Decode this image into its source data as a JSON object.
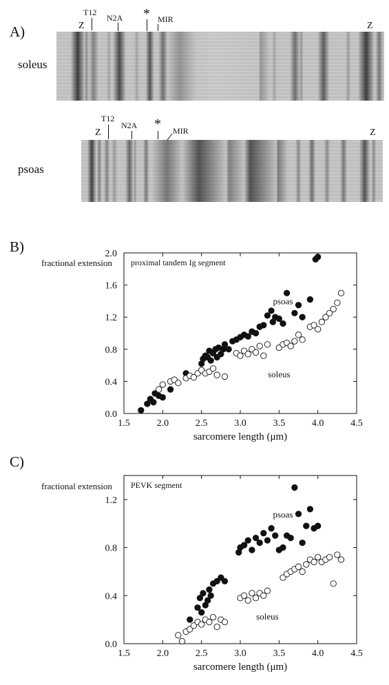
{
  "panel_a": {
    "letter": "A)",
    "gels": [
      {
        "muscle": "soleus",
        "labels": {
          "z_left": "Z",
          "t12": "T12",
          "n2a": "N2A",
          "asterisk": "*",
          "mir": "MIR",
          "z_right": "Z"
        },
        "bands": [
          {
            "x": 0.065,
            "w": 0.022,
            "i": 0.92
          },
          {
            "x": 0.09,
            "w": 0.01,
            "i": 0.5
          },
          {
            "x": 0.113,
            "w": 0.016,
            "i": 0.55
          },
          {
            "x": 0.16,
            "w": 0.008,
            "i": 0.35
          },
          {
            "x": 0.192,
            "w": 0.02,
            "i": 0.85
          },
          {
            "x": 0.245,
            "w": 0.008,
            "i": 0.35
          },
          {
            "x": 0.285,
            "w": 0.013,
            "i": 0.8
          },
          {
            "x": 0.325,
            "w": 0.014,
            "i": 0.65
          },
          {
            "x": 0.375,
            "w": 0.05,
            "i": 0.45
          },
          {
            "x": 0.48,
            "w": 0.14,
            "i": 0.15
          },
          {
            "x": 0.6,
            "w": 0.05,
            "i": 0.45
          },
          {
            "x": 0.665,
            "w": 0.008,
            "i": 0.35
          },
          {
            "x": 0.728,
            "w": 0.016,
            "i": 0.65
          },
          {
            "x": 0.745,
            "w": 0.008,
            "i": 0.5
          },
          {
            "x": 0.815,
            "w": 0.018,
            "i": 0.75
          },
          {
            "x": 0.89,
            "w": 0.008,
            "i": 0.4
          },
          {
            "x": 0.945,
            "w": 0.025,
            "i": 0.92
          },
          {
            "x": 0.985,
            "w": 0.012,
            "i": 0.6
          }
        ]
      },
      {
        "muscle": "psoas",
        "labels": {
          "z_left": "Z",
          "t12": "T12",
          "n2a": "N2A",
          "asterisk": "*",
          "mir": "MIR",
          "z_right": "Z"
        },
        "bands": [
          {
            "x": 0.035,
            "w": 0.015,
            "i": 0.9
          },
          {
            "x": 0.06,
            "w": 0.008,
            "i": 0.55
          },
          {
            "x": 0.085,
            "w": 0.01,
            "i": 0.55
          },
          {
            "x": 0.11,
            "w": 0.01,
            "i": 0.4
          },
          {
            "x": 0.16,
            "w": 0.014,
            "i": 0.7
          },
          {
            "x": 0.178,
            "w": 0.006,
            "i": 0.45
          },
          {
            "x": 0.215,
            "w": 0.01,
            "i": 0.6
          },
          {
            "x": 0.285,
            "w": 0.05,
            "i": 0.6
          },
          {
            "x": 0.39,
            "w": 0.09,
            "i": 0.8
          },
          {
            "x": 0.49,
            "w": 0.05,
            "i": 0.55
          },
          {
            "x": 0.56,
            "w": 0.09,
            "i": 0.8
          },
          {
            "x": 0.645,
            "w": 0.04,
            "i": 0.6
          },
          {
            "x": 0.72,
            "w": 0.01,
            "i": 0.5
          },
          {
            "x": 0.765,
            "w": 0.012,
            "i": 0.65
          },
          {
            "x": 0.815,
            "w": 0.01,
            "i": 0.5
          },
          {
            "x": 0.87,
            "w": 0.012,
            "i": 0.6
          },
          {
            "x": 0.94,
            "w": 0.018,
            "i": 0.8
          },
          {
            "x": 0.97,
            "w": 0.008,
            "i": 0.5
          }
        ]
      }
    ]
  },
  "chart_data": [
    {
      "type": "scatter",
      "panel_letter": "B)",
      "title": "proximal tandem Ig segment",
      "xlabel": "sarcomere length (μm)",
      "ylabel": "fractional extension",
      "xlim": [
        1.5,
        4.5
      ],
      "ylim": [
        0,
        2.0
      ],
      "xticks": [
        "1.5",
        "2.0",
        "2.5",
        "3.0",
        "3.5",
        "4.0",
        "4.5"
      ],
      "yticks": [
        "0.0",
        "0.4",
        "0.8",
        "1.2",
        "1.6",
        "2.0"
      ],
      "annotations": [
        "psoas",
        "soleus"
      ],
      "series": [
        {
          "name": "psoas",
          "marker": "filled-circle",
          "points": [
            [
              1.72,
              0.04
            ],
            [
              1.8,
              0.12
            ],
            [
              1.84,
              0.18
            ],
            [
              1.88,
              0.14
            ],
            [
              1.9,
              0.25
            ],
            [
              1.95,
              0.22
            ],
            [
              2.0,
              0.2
            ],
            [
              2.1,
              0.3
            ],
            [
              2.3,
              0.5
            ],
            [
              2.5,
              0.62
            ],
            [
              2.52,
              0.68
            ],
            [
              2.55,
              0.72
            ],
            [
              2.58,
              0.7
            ],
            [
              2.6,
              0.78
            ],
            [
              2.62,
              0.66
            ],
            [
              2.65,
              0.75
            ],
            [
              2.68,
              0.8
            ],
            [
              2.7,
              0.7
            ],
            [
              2.72,
              0.82
            ],
            [
              2.75,
              0.74
            ],
            [
              2.78,
              0.8
            ],
            [
              2.8,
              0.86
            ],
            [
              2.85,
              0.8
            ],
            [
              2.9,
              0.9
            ],
            [
              2.95,
              0.92
            ],
            [
              3.0,
              0.95
            ],
            [
              3.05,
              0.98
            ],
            [
              3.1,
              0.96
            ],
            [
              3.15,
              1.02
            ],
            [
              3.2,
              1.0
            ],
            [
              3.25,
              1.08
            ],
            [
              3.3,
              1.1
            ],
            [
              3.35,
              1.22
            ],
            [
              3.4,
              1.28
            ],
            [
              3.42,
              1.14
            ],
            [
              3.45,
              1.2
            ],
            [
              3.5,
              1.18
            ],
            [
              3.55,
              1.12
            ],
            [
              3.6,
              1.5
            ],
            [
              3.7,
              1.25
            ],
            [
              3.75,
              1.35
            ],
            [
              3.8,
              1.2
            ],
            [
              3.9,
              1.42
            ],
            [
              3.97,
              1.92
            ],
            [
              4.0,
              1.95
            ]
          ]
        },
        {
          "name": "soleus",
          "marker": "open-circle",
          "points": [
            [
              1.95,
              0.3
            ],
            [
              2.0,
              0.36
            ],
            [
              2.1,
              0.4
            ],
            [
              2.15,
              0.42
            ],
            [
              2.2,
              0.38
            ],
            [
              2.3,
              0.44
            ],
            [
              2.35,
              0.47
            ],
            [
              2.4,
              0.45
            ],
            [
              2.45,
              0.5
            ],
            [
              2.5,
              0.54
            ],
            [
              2.55,
              0.5
            ],
            [
              2.6,
              0.52
            ],
            [
              2.65,
              0.56
            ],
            [
              2.7,
              0.48
            ],
            [
              2.8,
              0.46
            ],
            [
              2.95,
              0.75
            ],
            [
              3.0,
              0.72
            ],
            [
              3.05,
              0.78
            ],
            [
              3.1,
              0.74
            ],
            [
              3.15,
              0.8
            ],
            [
              3.2,
              0.76
            ],
            [
              3.25,
              0.84
            ],
            [
              3.3,
              0.72
            ],
            [
              3.35,
              0.86
            ],
            [
              3.5,
              0.82
            ],
            [
              3.55,
              0.86
            ],
            [
              3.6,
              0.88
            ],
            [
              3.65,
              0.84
            ],
            [
              3.7,
              0.9
            ],
            [
              3.75,
              0.98
            ],
            [
              3.8,
              0.92
            ],
            [
              3.9,
              1.08
            ],
            [
              3.95,
              1.1
            ],
            [
              4.0,
              1.05
            ],
            [
              4.05,
              1.14
            ],
            [
              4.1,
              1.2
            ],
            [
              4.15,
              1.25
            ],
            [
              4.2,
              1.3
            ],
            [
              4.25,
              1.38
            ],
            [
              4.3,
              1.5
            ]
          ]
        }
      ]
    },
    {
      "type": "scatter",
      "panel_letter": "C)",
      "title": "PEVK segment",
      "xlabel": "sarcomere length (μm)",
      "ylabel": "fractional extension",
      "xlim": [
        1.5,
        4.5
      ],
      "ylim": [
        0,
        1.4
      ],
      "xticks": [
        "1.5",
        "2.0",
        "2.5",
        "3.0",
        "3.5",
        "4.0",
        "4.5"
      ],
      "yticks": [
        "0.0",
        "0.4",
        "0.8",
        "1.2"
      ],
      "annotations": [
        "psoas",
        "soleus"
      ],
      "series": [
        {
          "name": "psoas",
          "marker": "filled-circle",
          "points": [
            [
              2.35,
              0.2
            ],
            [
              2.45,
              0.3
            ],
            [
              2.48,
              0.38
            ],
            [
              2.5,
              0.26
            ],
            [
              2.52,
              0.42
            ],
            [
              2.55,
              0.32
            ],
            [
              2.58,
              0.36
            ],
            [
              2.6,
              0.45
            ],
            [
              2.62,
              0.4
            ],
            [
              2.65,
              0.5
            ],
            [
              2.7,
              0.52
            ],
            [
              2.75,
              0.55
            ],
            [
              2.8,
              0.52
            ],
            [
              2.98,
              0.76
            ],
            [
              3.0,
              0.8
            ],
            [
              3.05,
              0.82
            ],
            [
              3.1,
              0.86
            ],
            [
              3.15,
              0.78
            ],
            [
              3.2,
              0.88
            ],
            [
              3.25,
              0.84
            ],
            [
              3.3,
              0.92
            ],
            [
              3.35,
              0.86
            ],
            [
              3.4,
              0.96
            ],
            [
              3.45,
              0.9
            ],
            [
              3.5,
              0.78
            ],
            [
              3.55,
              0.8
            ],
            [
              3.6,
              0.9
            ],
            [
              3.65,
              0.88
            ],
            [
              3.7,
              1.3
            ],
            [
              3.75,
              1.08
            ],
            [
              3.8,
              0.84
            ],
            [
              3.85,
              0.98
            ],
            [
              3.9,
              1.12
            ],
            [
              3.95,
              0.96
            ],
            [
              4.0,
              0.98
            ]
          ]
        },
        {
          "name": "soleus",
          "marker": "open-circle",
          "points": [
            [
              2.2,
              0.07
            ],
            [
              2.25,
              0.02
            ],
            [
              2.3,
              0.1
            ],
            [
              2.35,
              0.12
            ],
            [
              2.4,
              0.15
            ],
            [
              2.45,
              0.18
            ],
            [
              2.5,
              0.16
            ],
            [
              2.55,
              0.2
            ],
            [
              2.6,
              0.18
            ],
            [
              2.65,
              0.22
            ],
            [
              2.7,
              0.14
            ],
            [
              2.75,
              0.2
            ],
            [
              2.8,
              0.18
            ],
            [
              3.0,
              0.38
            ],
            [
              3.05,
              0.4
            ],
            [
              3.1,
              0.36
            ],
            [
              3.15,
              0.42
            ],
            [
              3.2,
              0.38
            ],
            [
              3.25,
              0.42
            ],
            [
              3.3,
              0.4
            ],
            [
              3.35,
              0.44
            ],
            [
              3.55,
              0.55
            ],
            [
              3.6,
              0.58
            ],
            [
              3.65,
              0.6
            ],
            [
              3.7,
              0.62
            ],
            [
              3.75,
              0.64
            ],
            [
              3.8,
              0.6
            ],
            [
              3.85,
              0.66
            ],
            [
              3.9,
              0.7
            ],
            [
              3.95,
              0.68
            ],
            [
              4.0,
              0.72
            ],
            [
              4.05,
              0.68
            ],
            [
              4.1,
              0.7
            ],
            [
              4.15,
              0.72
            ],
            [
              4.2,
              0.5
            ],
            [
              4.25,
              0.74
            ],
            [
              4.3,
              0.7
            ]
          ]
        }
      ]
    }
  ]
}
